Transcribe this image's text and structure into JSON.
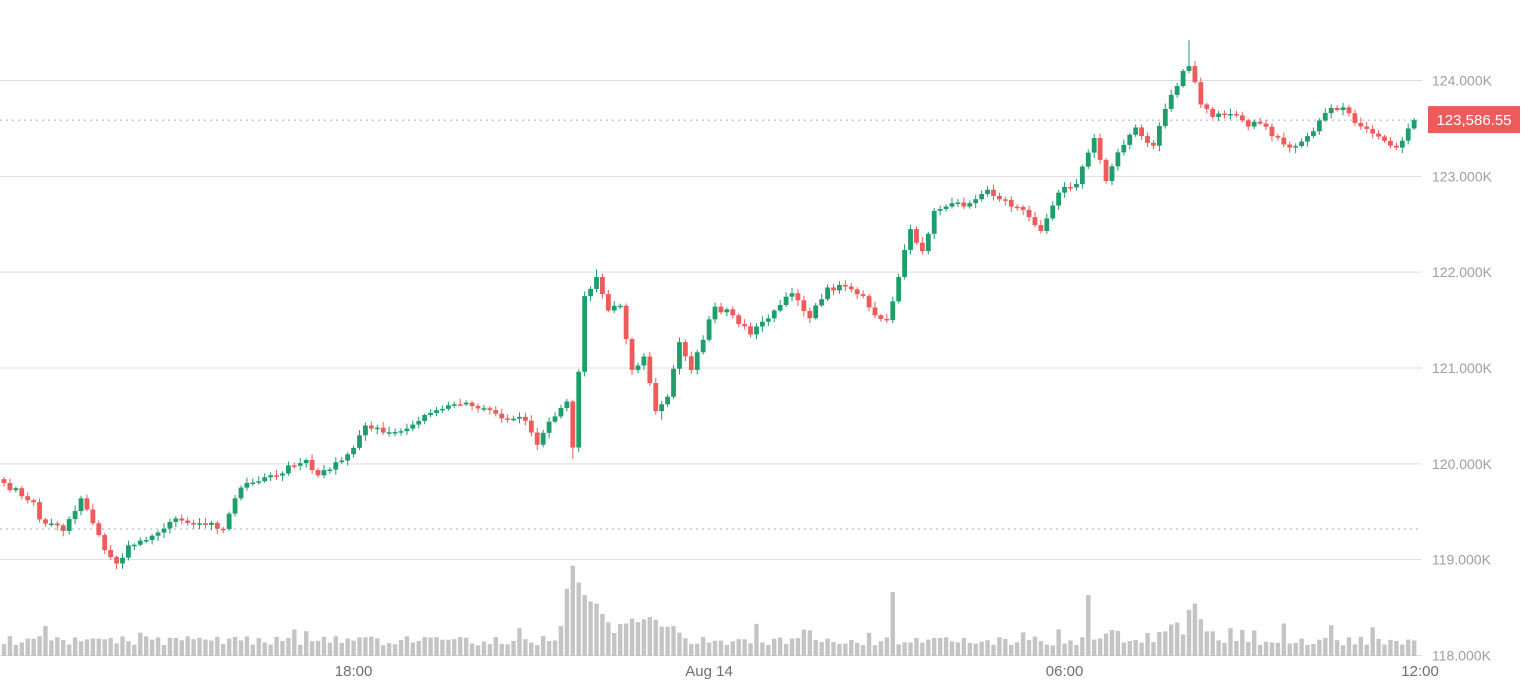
{
  "colors": {
    "up": "#1e9e6a",
    "down": "#ef5a5a",
    "grid": "#d9dde2",
    "volume": "#c4c4c4",
    "ref_line": "#9db2c6",
    "price_tag_bg": "#ef5a5a",
    "price_tag_text": "#ffffff"
  },
  "chart_data": {
    "type": "candlestick",
    "title": "",
    "xlabel": "",
    "ylabel": "",
    "ylim": [
      118000,
      124500
    ],
    "y_ticks": [
      {
        "value": 124000,
        "label": "124.000K"
      },
      {
        "value": 123000,
        "label": "123.000K"
      },
      {
        "value": 122000,
        "label": "122.000K"
      },
      {
        "value": 121000,
        "label": "121.000K"
      },
      {
        "value": 120000,
        "label": "120.000K"
      },
      {
        "value": 119000,
        "label": "119.000K"
      },
      {
        "value": 118000,
        "label": "118.000K"
      }
    ],
    "x_ticks": [
      {
        "index": 59,
        "label": "18:00"
      },
      {
        "index": 119,
        "label": "Aug 14"
      },
      {
        "index": 179,
        "label": "06:00"
      },
      {
        "index": 239,
        "label": "12:00"
      }
    ],
    "last_price": {
      "value": 123586.55,
      "label": "123,586.55"
    },
    "reference_price": 119320,
    "grid": true,
    "legend": "none",
    "interval": "6 candles per hour",
    "anchors": [
      [
        0,
        119800
      ],
      [
        5,
        119600
      ],
      [
        6,
        119420
      ],
      [
        10,
        119300
      ],
      [
        13,
        119640
      ],
      [
        15,
        119380
      ],
      [
        17,
        119100
      ],
      [
        19,
        118960
      ],
      [
        21,
        119150
      ],
      [
        25,
        119250
      ],
      [
        29,
        119430
      ],
      [
        33,
        119380
      ],
      [
        37,
        119320
      ],
      [
        39,
        119640
      ],
      [
        41,
        119800
      ],
      [
        45,
        119880
      ],
      [
        49,
        119980
      ],
      [
        51,
        120040
      ],
      [
        53,
        119880
      ],
      [
        55,
        119940
      ],
      [
        58,
        120100
      ],
      [
        61,
        120400
      ],
      [
        65,
        120330
      ],
      [
        69,
        120410
      ],
      [
        73,
        120560
      ],
      [
        77,
        120620
      ],
      [
        81,
        120580
      ],
      [
        85,
        120470
      ],
      [
        88,
        120450
      ],
      [
        90,
        120200
      ],
      [
        92,
        120440
      ],
      [
        95,
        120650
      ],
      [
        96,
        120170
      ],
      [
        97,
        120960
      ],
      [
        98,
        121750
      ],
      [
        100,
        121950
      ],
      [
        102,
        121600
      ],
      [
        104,
        121650
      ],
      [
        106,
        120980
      ],
      [
        108,
        121120
      ],
      [
        110,
        120550
      ],
      [
        112,
        120700
      ],
      [
        114,
        121270
      ],
      [
        116,
        120980
      ],
      [
        120,
        121640
      ],
      [
        123,
        121550
      ],
      [
        126,
        121350
      ],
      [
        130,
        121600
      ],
      [
        133,
        121780
      ],
      [
        136,
        121520
      ],
      [
        139,
        121840
      ],
      [
        142,
        121850
      ],
      [
        145,
        121750
      ],
      [
        147,
        121550
      ],
      [
        149,
        121500
      ],
      [
        151,
        121950
      ],
      [
        153,
        122450
      ],
      [
        155,
        122220
      ],
      [
        157,
        122640
      ],
      [
        160,
        122720
      ],
      [
        163,
        122720
      ],
      [
        166,
        122860
      ],
      [
        168,
        122760
      ],
      [
        172,
        122650
      ],
      [
        175,
        122430
      ],
      [
        178,
        122830
      ],
      [
        181,
        122920
      ],
      [
        184,
        123400
      ],
      [
        186,
        122950
      ],
      [
        188,
        123250
      ],
      [
        191,
        123510
      ],
      [
        194,
        123320
      ],
      [
        197,
        123850
      ],
      [
        199,
        124100
      ],
      [
        200,
        124150
      ],
      [
        202,
        123750
      ],
      [
        204,
        123620
      ],
      [
        207,
        123650
      ],
      [
        210,
        123520
      ],
      [
        212,
        123550
      ],
      [
        214,
        123420
      ],
      [
        217,
        123300
      ],
      [
        220,
        123420
      ],
      [
        223,
        123660
      ],
      [
        226,
        123720
      ],
      [
        229,
        123520
      ],
      [
        233,
        123370
      ],
      [
        235,
        123300
      ],
      [
        237,
        123500
      ],
      [
        238,
        123586.55
      ]
    ],
    "candles_count": 239,
    "volume_ylim": [
      0,
      100
    ]
  }
}
